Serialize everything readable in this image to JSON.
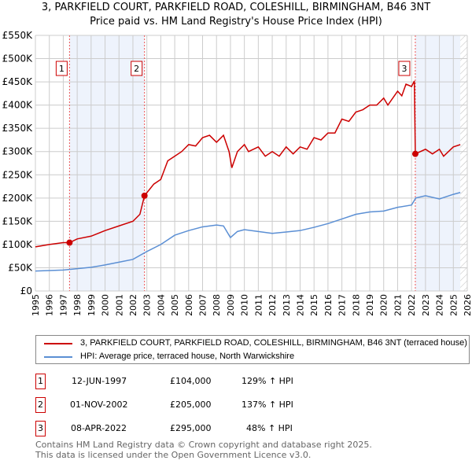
{
  "chart_data": {
    "type": "line",
    "title": "3, PARKFIELD COURT, PARKFIELD ROAD, COLESHILL, BIRMINGHAM, B46 3NT",
    "subtitle": "Price paid vs. HM Land Registry's House Price Index (HPI)",
    "xlim": [
      1995,
      2026
    ],
    "ylim": [
      0,
      550000
    ],
    "y_ticks": [
      0,
      50000,
      100000,
      150000,
      200000,
      250000,
      300000,
      350000,
      400000,
      450000,
      500000,
      550000
    ],
    "y_tick_labels": [
      "£0",
      "£50K",
      "£100K",
      "£150K",
      "£200K",
      "£250K",
      "£300K",
      "£350K",
      "£400K",
      "£450K",
      "£500K",
      "£550K"
    ],
    "x_ticks": [
      "1995",
      "1996",
      "1997",
      "1998",
      "1999",
      "2000",
      "2001",
      "2002",
      "2003",
      "2004",
      "2005",
      "2006",
      "2007",
      "2008",
      "2009",
      "2010",
      "2011",
      "2012",
      "2013",
      "2014",
      "2015",
      "2016",
      "2017",
      "2018",
      "2019",
      "2020",
      "2021",
      "2022",
      "2023",
      "2024",
      "2025",
      "2026"
    ],
    "grid": true,
    "series": [
      {
        "name": "3, PARKFIELD COURT, PARKFIELD ROAD, COLESHILL, BIRMINGHAM, B46 3NT (terraced house)",
        "color": "#cc0000",
        "x": [
          1995,
          1996,
          1997,
          1997.45,
          1998,
          1999,
          2000,
          2001,
          2002,
          2002.5,
          2002.83,
          2003.5,
          2004,
          2004.5,
          2005,
          2005.5,
          2006,
          2006.5,
          2007,
          2007.5,
          2008,
          2008.5,
          2008.9,
          2009.1,
          2009.5,
          2010,
          2010.3,
          2011,
          2011.5,
          2012,
          2012.5,
          2013,
          2013.5,
          2014,
          2014.5,
          2015,
          2015.5,
          2016,
          2016.5,
          2017,
          2017.5,
          2018,
          2018.5,
          2019,
          2019.5,
          2020,
          2020.3,
          2021,
          2021.3,
          2021.6,
          2022,
          2022.2,
          2022.27,
          2023,
          2023.5,
          2024,
          2024.3,
          2025,
          2025.5
        ],
        "y": [
          95000,
          100000,
          104000,
          104000,
          112000,
          118000,
          130000,
          140000,
          150000,
          165000,
          205000,
          230000,
          240000,
          280000,
          290000,
          300000,
          315000,
          312000,
          330000,
          335000,
          320000,
          335000,
          300000,
          265000,
          300000,
          315000,
          300000,
          310000,
          290000,
          300000,
          290000,
          310000,
          295000,
          310000,
          305000,
          330000,
          325000,
          340000,
          340000,
          370000,
          365000,
          385000,
          390000,
          400000,
          400000,
          415000,
          400000,
          430000,
          420000,
          445000,
          440000,
          452000,
          295000,
          305000,
          295000,
          305000,
          290000,
          310000,
          315000
        ]
      },
      {
        "name": "HPI: Average price, terraced house, North Warwickshire",
        "color": "#5b8fd4",
        "x": [
          1995,
          1996,
          1997,
          1998,
          1999,
          2000,
          2001,
          2002,
          2003,
          2004,
          2005,
          2006,
          2007,
          2008,
          2008.5,
          2009,
          2009.5,
          2010,
          2011,
          2012,
          2013,
          2014,
          2015,
          2016,
          2017,
          2018,
          2019,
          2020,
          2021,
          2022,
          2022.3,
          2023,
          2024,
          2025,
          2025.5
        ],
        "y": [
          43000,
          44000,
          45000,
          48000,
          51000,
          56000,
          62000,
          68000,
          85000,
          100000,
          120000,
          130000,
          138000,
          142000,
          140000,
          115000,
          128000,
          132000,
          128000,
          124000,
          127000,
          130000,
          137000,
          145000,
          155000,
          165000,
          170000,
          172000,
          180000,
          185000,
          200000,
          205000,
          198000,
          208000,
          212000
        ]
      }
    ],
    "sales": [
      {
        "label": "1",
        "x": 1997.45,
        "y": 104000,
        "date": "12-JUN-1997",
        "price": "£104,000",
        "hpi": "129% ↑ HPI"
      },
      {
        "label": "2",
        "x": 2002.83,
        "y": 205000,
        "date": "01-NOV-2002",
        "price": "£205,000",
        "hpi": "137% ↑ HPI"
      },
      {
        "label": "3",
        "x": 2022.27,
        "y": 295000,
        "date": "08-APR-2022",
        "price": "£295,000",
        "hpi": "48% ↑ HPI"
      }
    ],
    "legend_position": "below"
  },
  "footer": {
    "line1": "Contains HM Land Registry data © Crown copyright and database right 2025.",
    "line2": "This data is licensed under the Open Government Licence v3.0."
  }
}
